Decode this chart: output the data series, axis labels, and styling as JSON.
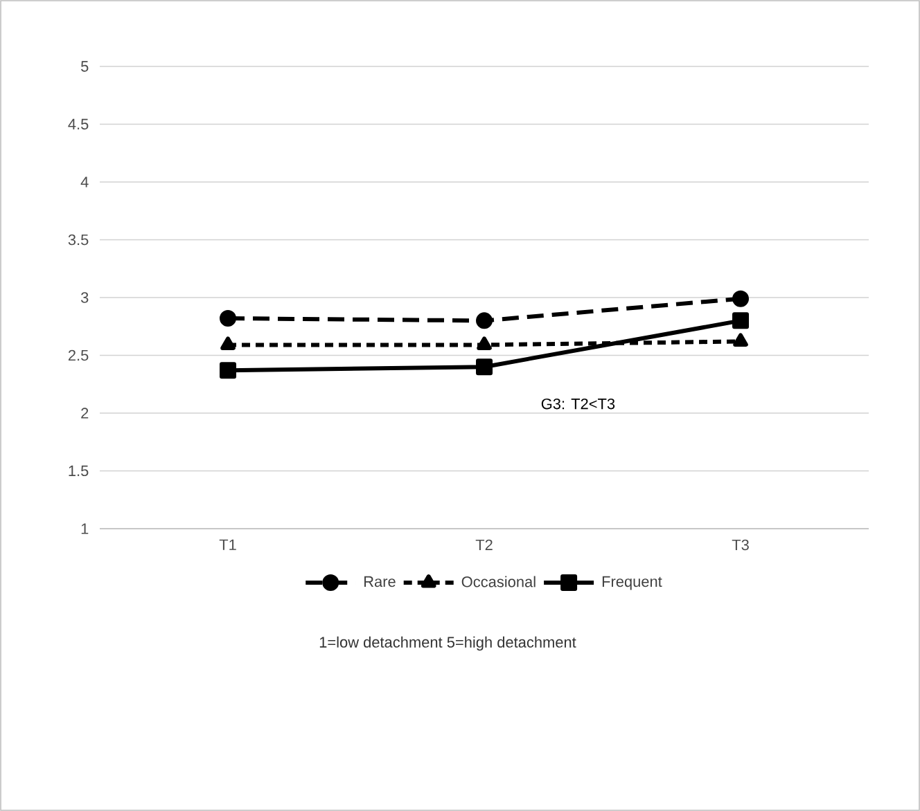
{
  "chart_data": {
    "type": "line",
    "categories": [
      "T1",
      "T2",
      "T3"
    ],
    "series": [
      {
        "name": "Rare",
        "color": "#000000",
        "marker": "circle",
        "line_style": "dashed",
        "values": [
          2.82,
          2.8,
          2.99
        ]
      },
      {
        "name": "Occasional",
        "color": "#000000",
        "marker": "triangle",
        "line_style": "dotted",
        "values": [
          2.59,
          2.59,
          2.62
        ]
      },
      {
        "name": "Frequent",
        "color": "#000000",
        "marker": "square",
        "line_style": "solid",
        "values": [
          2.37,
          2.4,
          2.8
        ]
      }
    ],
    "ylim": [
      1,
      5
    ],
    "yticks": [
      1,
      1.5,
      2,
      2.5,
      3,
      3.5,
      4,
      4.5,
      5
    ],
    "grid": "y",
    "legend": "bottom",
    "annotations": [
      "G3: T2<T3",
      "1=low detachment 5=high detachment"
    ]
  }
}
